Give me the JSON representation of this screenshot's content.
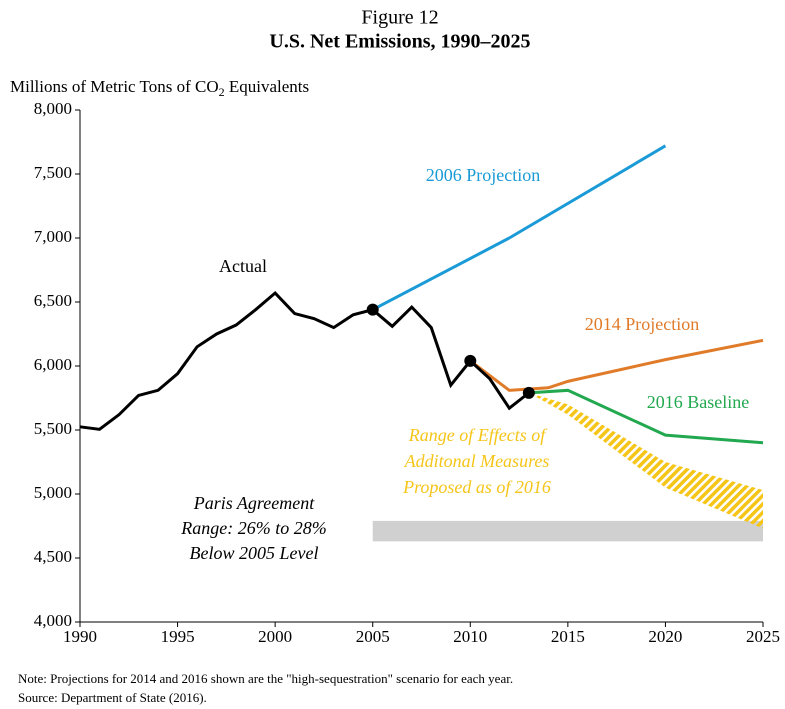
{
  "chart_data": {
    "type": "line",
    "figure": "Figure 12",
    "title": "U.S. Net Emissions, 1990–2025",
    "y_label": [
      "Millions of Metric Tons of CO",
      "2",
      " Equivalents"
    ],
    "xlim": [
      1990,
      2025
    ],
    "xticks": [
      1990,
      1995,
      2000,
      2005,
      2010,
      2015,
      2020,
      2025
    ],
    "ylim": [
      4000,
      8000
    ],
    "yticks": [
      {
        "value": 4000,
        "label": "4,000"
      },
      {
        "value": 4500,
        "label": "4,500"
      },
      {
        "value": 5000,
        "label": "5,000"
      },
      {
        "value": 5500,
        "label": "5,500"
      },
      {
        "value": 6000,
        "label": "6,000"
      },
      {
        "value": 6500,
        "label": "6,500"
      },
      {
        "value": 7000,
        "label": "7,000"
      },
      {
        "value": 7500,
        "label": "7,500"
      },
      {
        "value": 8000,
        "label": "8,000"
      }
    ],
    "grid": false,
    "series": [
      {
        "name": "Actual",
        "color": "#000000",
        "x": [
          1990,
          1991,
          1992,
          1993,
          1994,
          1995,
          1996,
          1997,
          1998,
          1999,
          2000,
          2001,
          2002,
          2003,
          2004,
          2005,
          2006,
          2007,
          2008,
          2009,
          2010,
          2011,
          2012,
          2013
        ],
        "values": [
          5525,
          5505,
          5620,
          5770,
          5810,
          5940,
          6150,
          6250,
          6320,
          6440,
          6570,
          6410,
          6370,
          6300,
          6400,
          6440,
          6310,
          6460,
          6300,
          5850,
          6040,
          5900,
          5670,
          5790
        ]
      },
      {
        "name": "2006 Projection",
        "color": "#1a9ad6",
        "x": [
          2005,
          2012,
          2020
        ],
        "values": [
          6440,
          7000,
          7720
        ]
      },
      {
        "name": "2014 Projection",
        "color": "#e07b2a",
        "x": [
          2010,
          2012,
          2014,
          2015,
          2020,
          2025
        ],
        "values": [
          6040,
          5810,
          5830,
          5880,
          6050,
          6200
        ]
      },
      {
        "name": "2016 Baseline",
        "color": "#22a84f",
        "x": [
          2013,
          2015,
          2020,
          2025
        ],
        "values": [
          5790,
          5810,
          5460,
          5400
        ]
      }
    ],
    "markers": {
      "color": "#000000",
      "x": [
        2005,
        2010,
        2013
      ],
      "values": [
        6440,
        6040,
        5790
      ]
    },
    "range": {
      "label": [
        "Range of Effects of",
        "Additonal Measures",
        "Proposed as of 2016"
      ],
      "color": "#f5c518",
      "x": [
        2013,
        2015,
        2020,
        2025
      ],
      "upper": [
        5790,
        5700,
        5250,
        5030
      ],
      "lower": [
        5790,
        5620,
        5050,
        4730
      ]
    },
    "paris": {
      "label": [
        "Paris Agreement",
        "Range: 26% to 28%",
        "Below 2005 Level"
      ],
      "color": "#d0d0d0",
      "x": [
        2005,
        2025
      ],
      "values": [
        4630,
        4790
      ]
    },
    "notes": [
      "Note: Projections for 2014 and 2016 shown are the \"high-sequestration\" scenario for each year.",
      "Source: Department of State (2016)."
    ]
  }
}
